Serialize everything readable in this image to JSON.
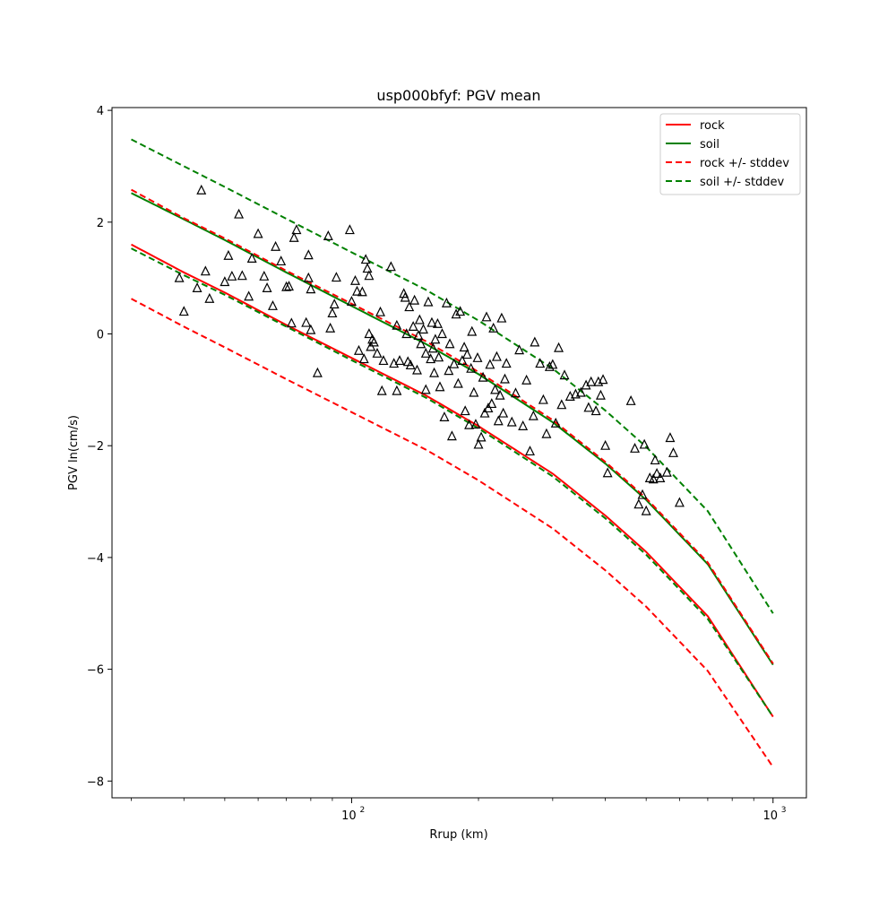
{
  "chart_data": {
    "type": "scatter",
    "title": "usp000bfyf: PGV mean",
    "xlabel": "Rrup (km)",
    "ylabel": "PGV ln(cm/s)",
    "xscale": "log",
    "xlim": [
      27,
      1200
    ],
    "ylim": [
      -8.3,
      4.05
    ],
    "yticks": [
      4,
      2,
      0,
      -2,
      -4,
      -6,
      -8
    ],
    "ytick_labels": [
      "4",
      "2",
      "0",
      "−2",
      "−4",
      "−6",
      "−8"
    ],
    "xticks": [
      100,
      1000
    ],
    "xtick_labels": [
      "10",
      "10"
    ],
    "xtick_exponents": [
      "2",
      "3"
    ],
    "grid": false,
    "legend_position": "top-right",
    "series": [
      {
        "name": "rock",
        "style": "solid",
        "color": "#ff0000",
        "x": [
          30,
          40,
          50,
          70,
          100,
          150,
          200,
          300,
          400,
          500,
          700,
          1000
        ],
        "y": [
          1.6,
          1.1,
          0.74,
          0.16,
          -0.43,
          -1.1,
          -1.65,
          -2.5,
          -3.25,
          -3.9,
          -5.05,
          -6.85
        ]
      },
      {
        "name": "soil",
        "style": "solid",
        "color": "#008000",
        "x": [
          30,
          40,
          50,
          70,
          100,
          150,
          200,
          300,
          400,
          500,
          700,
          1000
        ],
        "y": [
          2.52,
          2.05,
          1.68,
          1.1,
          0.5,
          -0.18,
          -0.72,
          -1.58,
          -2.32,
          -2.97,
          -4.12,
          -5.92
        ]
      },
      {
        "name": "rock +/- stddev",
        "style": "dashed",
        "color": "#ff0000",
        "x": [
          30,
          40,
          50,
          70,
          100,
          150,
          200,
          300,
          400,
          500,
          700,
          1000
        ],
        "y": [
          2.58,
          2.07,
          1.71,
          1.13,
          0.54,
          -0.13,
          -0.68,
          -1.54,
          -2.29,
          -2.94,
          -4.09,
          -5.9
        ]
      },
      {
        "name": "rock +/- stddev (lower)",
        "style": "dashed",
        "color": "#ff0000",
        "x": [
          30,
          40,
          50,
          70,
          100,
          150,
          200,
          300,
          400,
          500,
          700,
          1000
        ],
        "y": [
          0.63,
          0.13,
          -0.24,
          -0.81,
          -1.4,
          -2.07,
          -2.62,
          -3.48,
          -4.23,
          -4.88,
          -6.03,
          -7.75
        ]
      },
      {
        "name": "soil +/- stddev",
        "style": "dashed",
        "color": "#008000",
        "x": [
          30,
          40,
          50,
          70,
          100,
          150,
          200,
          300,
          400,
          500,
          700,
          1000
        ],
        "y": [
          3.48,
          3.0,
          2.63,
          2.06,
          1.46,
          0.79,
          0.24,
          -0.62,
          -1.37,
          -2.02,
          -3.17,
          -5.0
        ]
      },
      {
        "name": "soil +/- stddev (lower)",
        "style": "dashed",
        "color": "#008000",
        "x": [
          30,
          40,
          50,
          70,
          100,
          150,
          200,
          300,
          400,
          500,
          700,
          1000
        ],
        "y": [
          1.53,
          1.05,
          0.7,
          0.13,
          -0.47,
          -1.14,
          -1.69,
          -2.55,
          -3.3,
          -3.95,
          -5.1,
          -6.85
        ]
      }
    ],
    "observations": {
      "marker": "triangle",
      "color": "#000000",
      "points": [
        [
          39,
          1.0
        ],
        [
          40,
          0.4
        ],
        [
          43,
          0.82
        ],
        [
          44,
          2.57
        ],
        [
          45,
          1.12
        ],
        [
          46,
          0.63
        ],
        [
          50,
          0.93
        ],
        [
          51,
          1.4
        ],
        [
          52,
          1.03
        ],
        [
          54,
          2.14
        ],
        [
          55,
          1.04
        ],
        [
          57,
          0.67
        ],
        [
          58,
          1.35
        ],
        [
          60,
          1.79
        ],
        [
          62,
          1.03
        ],
        [
          63,
          0.82
        ],
        [
          65,
          0.5
        ],
        [
          66,
          1.56
        ],
        [
          68,
          1.3
        ],
        [
          70,
          0.84
        ],
        [
          71,
          0.85
        ],
        [
          72,
          0.19
        ],
        [
          73,
          1.72
        ],
        [
          74,
          1.86
        ],
        [
          78,
          0.2
        ],
        [
          79,
          1.41
        ],
        [
          80,
          0.8
        ],
        [
          79,
          1.0
        ],
        [
          80,
          0.07
        ],
        [
          83,
          -0.7
        ],
        [
          88,
          1.75
        ],
        [
          89,
          0.1
        ],
        [
          90,
          0.37
        ],
        [
          91,
          0.53
        ],
        [
          92,
          1.01
        ],
        [
          99,
          1.86
        ],
        [
          100,
          0.58
        ],
        [
          102,
          0.95
        ],
        [
          103,
          0.76
        ],
        [
          104,
          -0.3
        ],
        [
          106,
          0.75
        ],
        [
          107,
          -0.45
        ],
        [
          108,
          1.33
        ],
        [
          109,
          1.17
        ],
        [
          110,
          1.04
        ],
        [
          111,
          -0.23
        ],
        [
          112,
          -0.1
        ],
        [
          110,
          0.0
        ],
        [
          113,
          -0.15
        ],
        [
          115,
          -0.35
        ],
        [
          117,
          0.39
        ],
        [
          118,
          -1.02
        ],
        [
          119,
          -0.48
        ],
        [
          124,
          1.2
        ],
        [
          126,
          -0.53
        ],
        [
          128,
          0.15
        ],
        [
          128,
          -1.02
        ],
        [
          130,
          -0.48
        ],
        [
          133,
          0.72
        ],
        [
          134,
          0.65
        ],
        [
          135,
          0.0
        ],
        [
          136,
          -0.5
        ],
        [
          137,
          0.48
        ],
        [
          138,
          -0.56
        ],
        [
          140,
          0.13
        ],
        [
          141,
          0.6
        ],
        [
          143,
          -0.65
        ],
        [
          144,
          -0.03
        ],
        [
          145,
          0.25
        ],
        [
          146,
          -0.18
        ],
        [
          148,
          0.08
        ],
        [
          150,
          -0.35
        ],
        [
          150,
          -1.0
        ],
        [
          152,
          0.57
        ],
        [
          154,
          -0.45
        ],
        [
          155,
          0.2
        ],
        [
          156,
          -0.26
        ],
        [
          157,
          -0.7
        ],
        [
          158,
          -0.1
        ],
        [
          160,
          0.18
        ],
        [
          161,
          -0.42
        ],
        [
          162,
          -0.95
        ],
        [
          164,
          0.0
        ],
        [
          166,
          -1.49
        ],
        [
          168,
          0.55
        ],
        [
          170,
          -0.66
        ],
        [
          171,
          -0.18
        ],
        [
          173,
          -1.83
        ],
        [
          175,
          -0.54
        ],
        [
          177,
          0.35
        ],
        [
          179,
          -0.89
        ],
        [
          181,
          0.4
        ],
        [
          183,
          -0.48
        ],
        [
          185,
          -0.24
        ],
        [
          186,
          -1.38
        ],
        [
          188,
          -0.37
        ],
        [
          190,
          -1.63
        ],
        [
          192,
          -0.62
        ],
        [
          193,
          0.04
        ],
        [
          195,
          -1.05
        ],
        [
          197,
          -1.62
        ],
        [
          199,
          -0.43
        ],
        [
          200,
          -1.98
        ],
        [
          203,
          -1.85
        ],
        [
          205,
          -0.78
        ],
        [
          207,
          -1.42
        ],
        [
          209,
          0.3
        ],
        [
          211,
          -1.33
        ],
        [
          213,
          -0.55
        ],
        [
          215,
          -1.25
        ],
        [
          217,
          0.1
        ],
        [
          219,
          -1.0
        ],
        [
          221,
          -0.41
        ],
        [
          223,
          -1.56
        ],
        [
          225,
          -1.1
        ],
        [
          227,
          0.28
        ],
        [
          229,
          -1.42
        ],
        [
          231,
          -0.81
        ],
        [
          233,
          -0.53
        ],
        [
          240,
          -1.58
        ],
        [
          245,
          -1.06
        ],
        [
          250,
          -0.29
        ],
        [
          255,
          -1.65
        ],
        [
          260,
          -0.83
        ],
        [
          265,
          -2.1
        ],
        [
          270,
          -1.47
        ],
        [
          272,
          -0.15
        ],
        [
          280,
          -0.53
        ],
        [
          285,
          -1.18
        ],
        [
          290,
          -1.79
        ],
        [
          295,
          -0.59
        ],
        [
          300,
          -0.55
        ],
        [
          305,
          -1.6
        ],
        [
          310,
          -0.25
        ],
        [
          315,
          -1.27
        ],
        [
          320,
          -0.74
        ],
        [
          330,
          -1.12
        ],
        [
          340,
          -1.08
        ],
        [
          350,
          -1.05
        ],
        [
          360,
          -0.92
        ],
        [
          365,
          -1.32
        ],
        [
          370,
          -0.86
        ],
        [
          380,
          -1.38
        ],
        [
          385,
          -0.86
        ],
        [
          390,
          -1.1
        ],
        [
          395,
          -0.82
        ],
        [
          400,
          -2.0
        ],
        [
          405,
          -2.49
        ],
        [
          460,
          -1.2
        ],
        [
          470,
          -2.05
        ],
        [
          480,
          -3.05
        ],
        [
          490,
          -2.88
        ],
        [
          495,
          -1.98
        ],
        [
          500,
          -3.17
        ],
        [
          510,
          -2.58
        ],
        [
          520,
          -2.6
        ],
        [
          525,
          -2.26
        ],
        [
          530,
          -2.5
        ],
        [
          540,
          -2.58
        ],
        [
          560,
          -2.48
        ],
        [
          570,
          -1.86
        ],
        [
          580,
          -2.13
        ],
        [
          600,
          -3.02
        ]
      ]
    }
  }
}
